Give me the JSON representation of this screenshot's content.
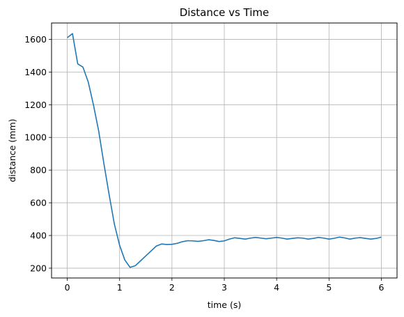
{
  "chart_data": {
    "type": "line",
    "title": "Distance vs Time",
    "xlabel": "time (s)",
    "ylabel": "distance (mm)",
    "xlim": [
      -0.3,
      6.3
    ],
    "ylim": [
      140,
      1700
    ],
    "xticks": [
      0,
      1,
      2,
      3,
      4,
      5,
      6
    ],
    "yticks": [
      200,
      400,
      600,
      800,
      1000,
      1200,
      1400,
      1600
    ],
    "grid": true,
    "line_color": "#1f77b4",
    "grid_color": "#b0b0b0",
    "series": [
      {
        "x": [
          0.0,
          0.1,
          0.2,
          0.3,
          0.4,
          0.5,
          0.6,
          0.7,
          0.8,
          0.9,
          1.0,
          1.1,
          1.2,
          1.3,
          1.4,
          1.5,
          1.6,
          1.7,
          1.8,
          1.9,
          2.0,
          2.1,
          2.2,
          2.3,
          2.4,
          2.5,
          2.6,
          2.7,
          2.8,
          2.9,
          3.0,
          3.1,
          3.2,
          3.3,
          3.4,
          3.5,
          3.6,
          3.7,
          3.8,
          3.9,
          4.0,
          4.1,
          4.2,
          4.3,
          4.4,
          4.5,
          4.6,
          4.7,
          4.8,
          4.9,
          5.0,
          5.1,
          5.2,
          5.3,
          5.4,
          5.5,
          5.6,
          5.7,
          5.8,
          5.9,
          6.0
        ],
        "y": [
          1610,
          1635,
          1450,
          1430,
          1340,
          1200,
          1040,
          840,
          650,
          470,
          340,
          250,
          205,
          215,
          245,
          275,
          305,
          335,
          348,
          345,
          346,
          352,
          362,
          368,
          367,
          364,
          368,
          374,
          370,
          363,
          367,
          378,
          386,
          382,
          378,
          384,
          388,
          384,
          380,
          384,
          388,
          384,
          378,
          382,
          386,
          384,
          378,
          382,
          388,
          384,
          378,
          383,
          390,
          385,
          378,
          384,
          387,
          382,
          378,
          382,
          390
        ]
      }
    ]
  }
}
